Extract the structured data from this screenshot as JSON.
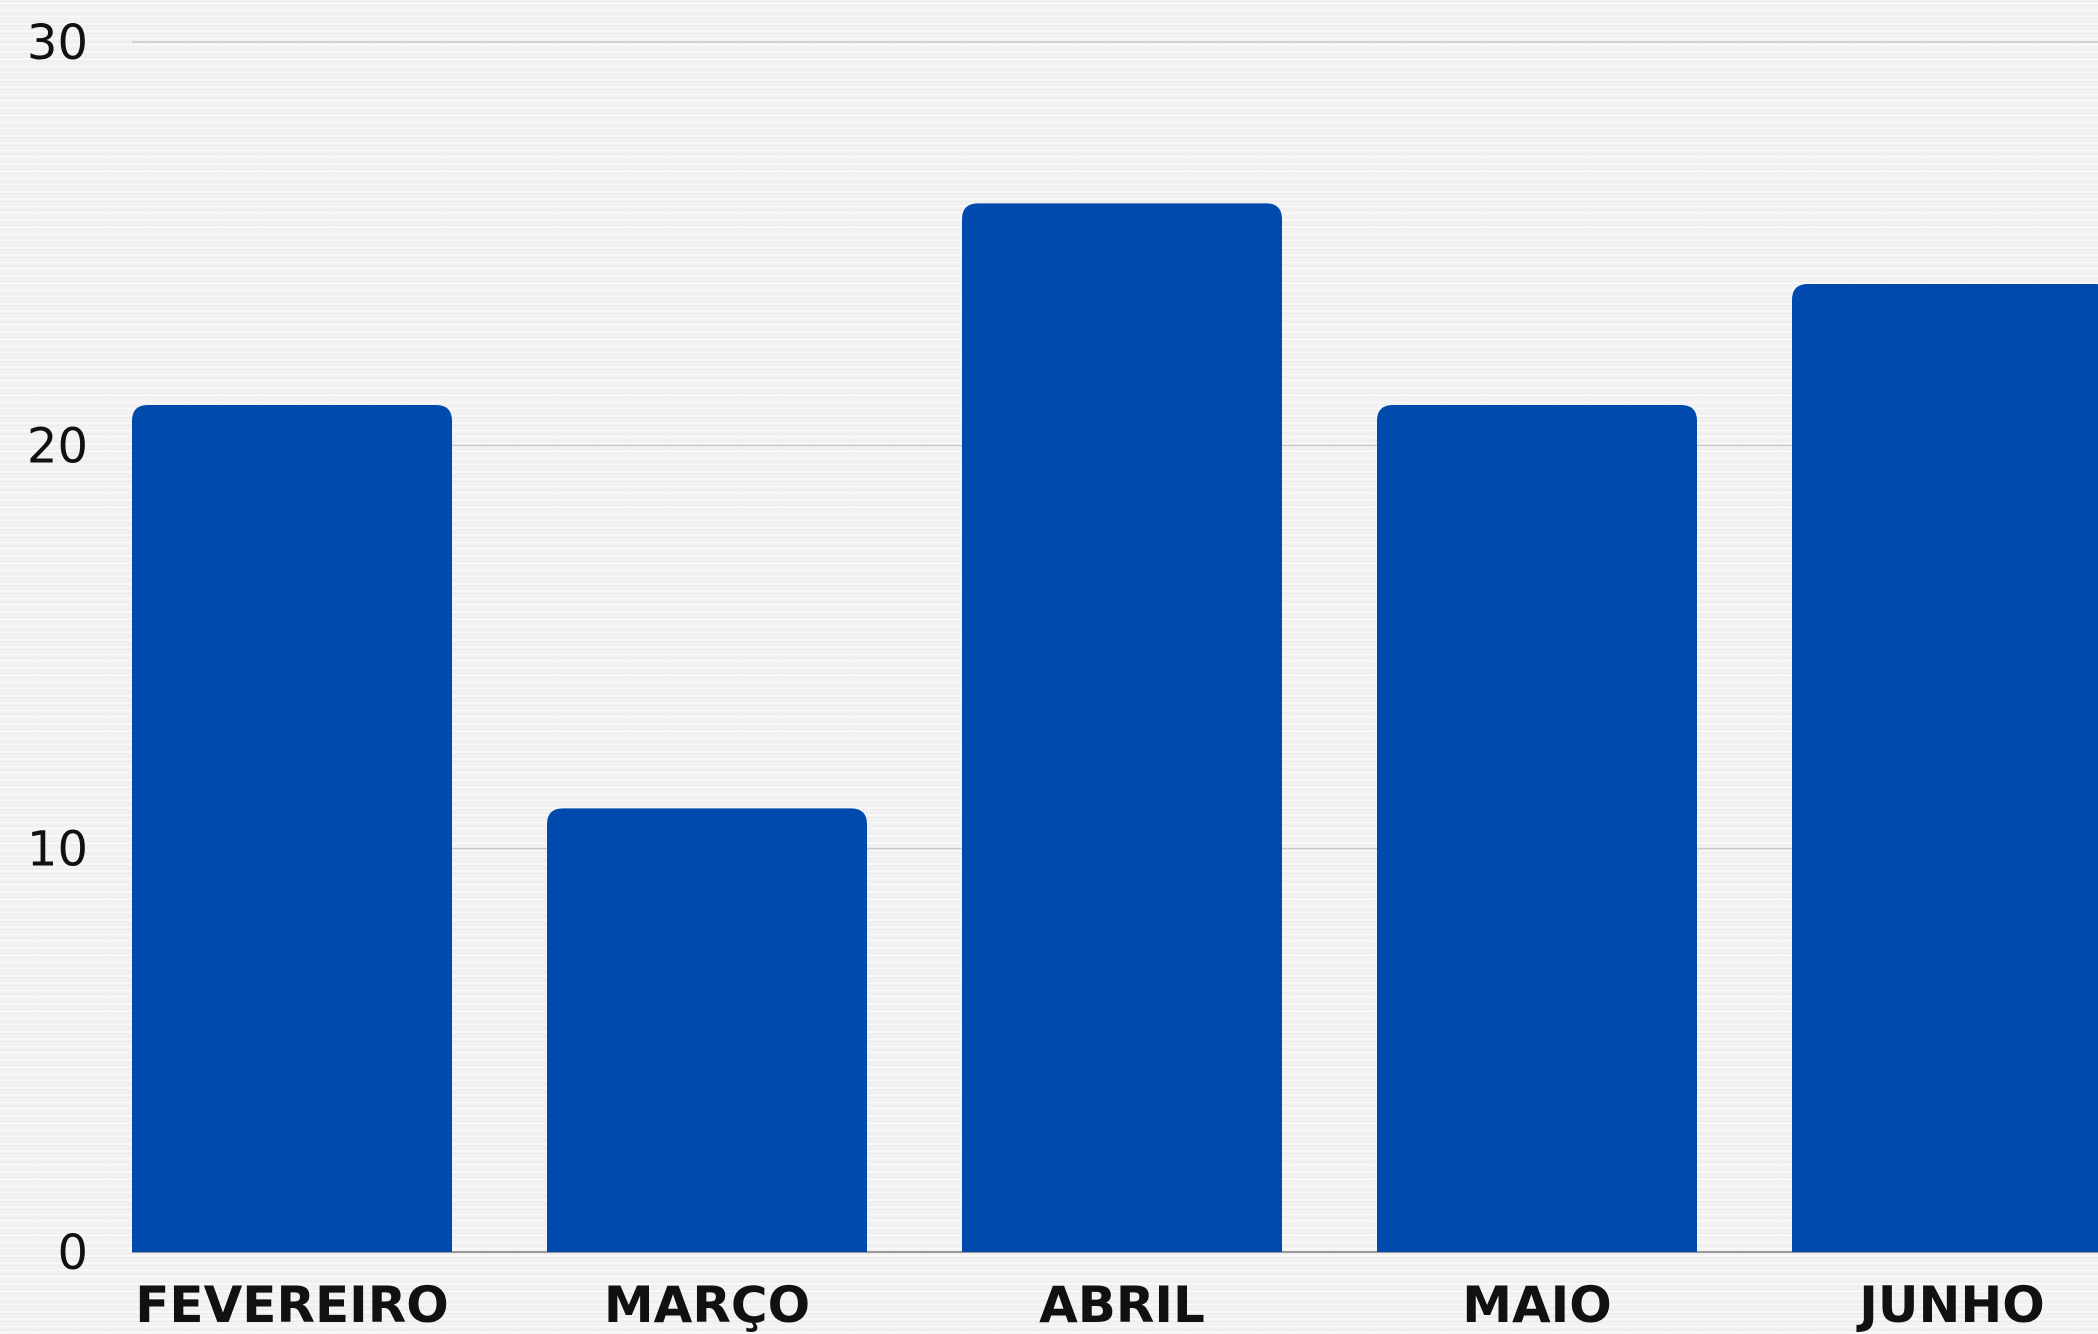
{
  "chart_data": {
    "type": "bar",
    "title": "",
    "xlabel": "",
    "ylabel": "",
    "categories": [
      "FEVEREIRO",
      "MARÇO",
      "ABRIL",
      "MAIO",
      "JUNHO"
    ],
    "values": [
      21,
      11,
      26,
      21,
      24
    ],
    "ylim": [
      0,
      30
    ],
    "yticks": [
      "0",
      "10",
      "20",
      "30"
    ],
    "grid": true,
    "legend": "none",
    "colors": {
      "bar": "#004aad",
      "grid": "#c8c8c8",
      "axis": "#9a9a9a",
      "text": "#111111"
    }
  }
}
